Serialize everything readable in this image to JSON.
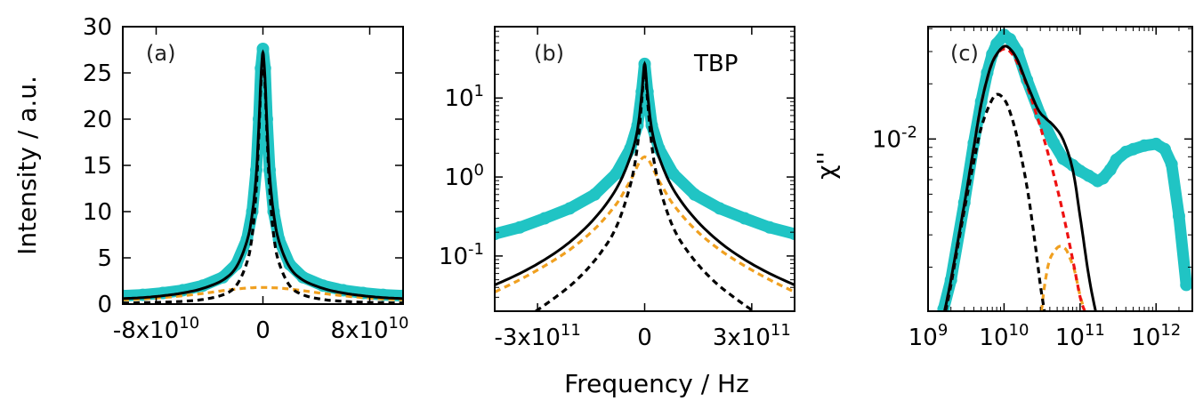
{
  "chart_data": [
    {
      "panel": "(a)",
      "type": "line",
      "xscale": "linear",
      "yscale": "linear",
      "xlim": [
        -105000000000,
        105000000000
      ],
      "ylim": [
        0,
        30
      ],
      "ylabel": "Intensity / a.u.",
      "xticks": [
        {
          "value": -80000000000,
          "mantissa": "-8x10",
          "exp": "10"
        },
        {
          "value": 0,
          "mantissa": "0",
          "exp": ""
        },
        {
          "value": 80000000000,
          "mantissa": "8x10",
          "exp": "10"
        }
      ],
      "yticks": [
        {
          "value": 0,
          "label": "0"
        },
        {
          "value": 5,
          "label": "5"
        },
        {
          "value": 10,
          "label": "10"
        },
        {
          "value": 15,
          "label": "15"
        },
        {
          "value": 20,
          "label": "20"
        },
        {
          "value": 25,
          "label": "25"
        },
        {
          "value": 30,
          "label": "30"
        }
      ],
      "series": [
        {
          "role": "data",
          "color": "#20c4c4",
          "style": "markers",
          "x": [
            -105000000000,
            -90000000000,
            -75000000000,
            -60000000000,
            -45000000000,
            -30000000000,
            -20000000000,
            -12000000000,
            -8000000000,
            -5000000000,
            -3000000000,
            -1500000000,
            0,
            1500000000,
            3000000000,
            5000000000,
            8000000000,
            12000000000,
            20000000000,
            30000000000,
            45000000000,
            60000000000,
            75000000000,
            90000000000,
            105000000000
          ],
          "y": [
            0.9,
            1.0,
            1.2,
            1.5,
            2.0,
            2.9,
            4.3,
            7.0,
            10.0,
            14.5,
            20.0,
            25.5,
            27.6,
            25.5,
            20.0,
            14.5,
            10.0,
            7.0,
            4.3,
            2.9,
            2.0,
            1.5,
            1.2,
            1.0,
            0.9
          ]
        },
        {
          "role": "fit-total",
          "color": "#000000",
          "style": "solid",
          "x": [
            -105000000000,
            -90000000000,
            -75000000000,
            -60000000000,
            -45000000000,
            -30000000000,
            -20000000000,
            -12000000000,
            -8000000000,
            -5000000000,
            -3000000000,
            -1500000000,
            0,
            1500000000,
            3000000000,
            5000000000,
            8000000000,
            12000000000,
            20000000000,
            30000000000,
            45000000000,
            60000000000,
            75000000000,
            90000000000,
            105000000000
          ],
          "y": [
            0.6,
            0.7,
            0.9,
            1.2,
            1.7,
            2.6,
            4.0,
            6.8,
            9.8,
            14.0,
            19.5,
            24.5,
            27.2,
            24.5,
            19.5,
            14.0,
            9.8,
            6.8,
            4.0,
            2.6,
            1.7,
            1.2,
            0.9,
            0.7,
            0.6
          ]
        },
        {
          "role": "component-1",
          "color": "#000000",
          "style": "dashed",
          "x": [
            -105000000000,
            -90000000000,
            -75000000000,
            -60000000000,
            -45000000000,
            -30000000000,
            -20000000000,
            -12000000000,
            -8000000000,
            -5000000000,
            -3000000000,
            -1500000000,
            0,
            1500000000,
            3000000000,
            5000000000,
            8000000000,
            12000000000,
            20000000000,
            30000000000,
            45000000000,
            60000000000,
            75000000000,
            90000000000,
            105000000000
          ],
          "y": [
            0.1,
            0.15,
            0.2,
            0.3,
            0.5,
            1.0,
            2.0,
            4.5,
            7.5,
            12.5,
            18.5,
            23.8,
            25.5,
            23.8,
            18.5,
            12.5,
            7.5,
            4.5,
            2.0,
            1.0,
            0.5,
            0.3,
            0.2,
            0.15,
            0.1
          ]
        },
        {
          "role": "component-2",
          "color": "#f0a020",
          "style": "dashed",
          "x": [
            -105000000000,
            -90000000000,
            -75000000000,
            -60000000000,
            -45000000000,
            -30000000000,
            -15000000000,
            0,
            15000000000,
            30000000000,
            45000000000,
            60000000000,
            75000000000,
            90000000000,
            105000000000
          ],
          "y": [
            0.45,
            0.55,
            0.7,
            0.9,
            1.15,
            1.45,
            1.7,
            1.8,
            1.7,
            1.45,
            1.15,
            0.9,
            0.7,
            0.55,
            0.45
          ]
        }
      ]
    },
    {
      "panel": "(b)",
      "type": "line",
      "annotation": "TBP",
      "xscale": "linear",
      "yscale": "log",
      "xlim": [
        -420000000000,
        420000000000
      ],
      "ylim": [
        0.02,
        80
      ],
      "xlabel": "Frequency / Hz",
      "xticks": [
        {
          "value": -300000000000,
          "mantissa": "-3x10",
          "exp": "11"
        },
        {
          "value": 0,
          "mantissa": "0",
          "exp": ""
        },
        {
          "value": 300000000000,
          "mantissa": "3x10",
          "exp": "11"
        }
      ],
      "yticks": [
        {
          "value": 0.1,
          "mantissa": "10",
          "exp": "-1"
        },
        {
          "value": 1,
          "mantissa": "10",
          "exp": "0"
        },
        {
          "value": 10,
          "mantissa": "10",
          "exp": "1"
        }
      ],
      "series": [
        {
          "role": "data",
          "color": "#20c4c4",
          "style": "markers",
          "x": [
            -420000000000,
            -350000000000,
            -280000000000,
            -210000000000,
            -140000000000,
            -80000000000,
            -40000000000,
            -20000000000,
            -8000000000,
            0,
            8000000000,
            20000000000,
            40000000000,
            80000000000,
            140000000000,
            210000000000,
            280000000000,
            350000000000,
            420000000000
          ],
          "y": [
            0.19,
            0.23,
            0.3,
            0.4,
            0.6,
            1.1,
            2.3,
            4.5,
            12,
            27,
            12,
            4.5,
            2.3,
            1.1,
            0.6,
            0.4,
            0.3,
            0.23,
            0.19
          ]
        },
        {
          "role": "fit-total",
          "color": "#000000",
          "style": "solid",
          "x": [
            -420000000000,
            -350000000000,
            -280000000000,
            -210000000000,
            -140000000000,
            -80000000000,
            -40000000000,
            -20000000000,
            -8000000000,
            0,
            8000000000,
            20000000000,
            40000000000,
            80000000000,
            140000000000,
            210000000000,
            280000000000,
            350000000000,
            420000000000
          ],
          "y": [
            0.043,
            0.06,
            0.09,
            0.15,
            0.3,
            0.7,
            1.8,
            4.0,
            11.5,
            27,
            11.5,
            4.0,
            1.8,
            0.7,
            0.3,
            0.15,
            0.09,
            0.06,
            0.043
          ]
        },
        {
          "role": "component-1",
          "color": "#000000",
          "style": "dashed",
          "x": [
            -305000000000,
            -250000000000,
            -190000000000,
            -130000000000,
            -80000000000,
            -40000000000,
            -20000000000,
            -8000000000,
            0,
            8000000000,
            20000000000,
            40000000000,
            80000000000,
            130000000000,
            190000000000,
            250000000000,
            305000000000
          ],
          "y": [
            0.02,
            0.03,
            0.05,
            0.1,
            0.23,
            0.8,
            2.5,
            9.5,
            25,
            9.5,
            2.5,
            0.8,
            0.23,
            0.1,
            0.05,
            0.03,
            0.02
          ]
        },
        {
          "role": "component-2",
          "color": "#f0a020",
          "style": "dashed",
          "x": [
            -420000000000,
            -350000000000,
            -280000000000,
            -210000000000,
            -140000000000,
            -80000000000,
            -40000000000,
            0,
            40000000000,
            80000000000,
            140000000000,
            210000000000,
            280000000000,
            350000000000,
            420000000000
          ],
          "y": [
            0.035,
            0.05,
            0.075,
            0.12,
            0.22,
            0.45,
            0.9,
            1.8,
            0.9,
            0.45,
            0.22,
            0.12,
            0.075,
            0.05,
            0.035
          ]
        }
      ]
    },
    {
      "panel": "(c)",
      "type": "line",
      "xscale": "log",
      "yscale": "log",
      "xlim": [
        1000000000,
        3000000000000
      ],
      "ylim": [
        0.00115,
        0.041
      ],
      "ylabel": "χ''",
      "xticks": [
        {
          "value": 1000000000,
          "mantissa": "10",
          "exp": "9"
        },
        {
          "value": 10000000000,
          "mantissa": "10",
          "exp": "10"
        },
        {
          "value": 100000000000,
          "mantissa": "10",
          "exp": "11"
        },
        {
          "value": 1000000000000,
          "mantissa": "10",
          "exp": "12"
        }
      ],
      "yticks": [
        {
          "value": 0.01,
          "mantissa": "10",
          "exp": "-2"
        }
      ],
      "series": [
        {
          "role": "data",
          "color": "#20c4c4",
          "style": "markers",
          "x": [
            1600000000,
            2000000000,
            3000000000,
            4000000000,
            5000000000,
            6000000000,
            7000000000,
            8000000000,
            10000000000,
            12000000000,
            15000000000,
            20000000000,
            30000000000,
            45000000000,
            60000000000,
            80000000000,
            100000000000,
            130000000000,
            170000000000,
            200000000000,
            250000000000,
            300000000000,
            400000000000,
            500000000000,
            700000000000,
            1000000000000,
            1300000000000,
            1600000000000,
            2000000000000,
            2500000000000
          ],
          "y": [
            0.00118,
            0.0017,
            0.0045,
            0.0095,
            0.016,
            0.023,
            0.029,
            0.033,
            0.037,
            0.035,
            0.03,
            0.021,
            0.0135,
            0.0095,
            0.0078,
            0.0072,
            0.0067,
            0.0063,
            0.0059,
            0.0061,
            0.0068,
            0.0077,
            0.0085,
            0.0088,
            0.0092,
            0.0094,
            0.0088,
            0.0073,
            0.0038,
            0.0016
          ]
        },
        {
          "role": "fit-total",
          "color": "#000000",
          "style": "solid",
          "x": [
            1650000000,
            2000000000,
            3000000000,
            4000000000,
            5000000000,
            6500000000,
            8000000000,
            10000000000,
            12000000000,
            15000000000,
            20000000000,
            28000000000,
            35000000000,
            45000000000,
            60000000000,
            80000000000,
            100000000000,
            130000000000,
            160000000000
          ],
          "y": [
            0.00115,
            0.0017,
            0.0044,
            0.009,
            0.0155,
            0.024,
            0.029,
            0.032,
            0.031,
            0.027,
            0.02,
            0.0145,
            0.013,
            0.0118,
            0.0099,
            0.0068,
            0.0038,
            0.0018,
            0.00115
          ]
        },
        {
          "role": "component-red",
          "color": "#ee1111",
          "style": "dashed",
          "x": [
            1650000000,
            2000000000,
            3000000000,
            4000000000,
            5000000000,
            6500000000,
            8000000000,
            10000000000,
            12000000000,
            15000000000,
            20000000000,
            28000000000,
            35000000000,
            45000000000,
            60000000000,
            80000000000,
            100000000000,
            115000000000
          ],
          "y": [
            0.00115,
            0.0017,
            0.0044,
            0.009,
            0.0155,
            0.024,
            0.029,
            0.031,
            0.03,
            0.026,
            0.0195,
            0.0128,
            0.0094,
            0.0064,
            0.0039,
            0.0022,
            0.00138,
            0.00115
          ]
        },
        {
          "role": "component-1",
          "color": "#000000",
          "style": "dashed",
          "x": [
            1700000000,
            2000000000,
            3000000000,
            4000000000,
            5000000000,
            6500000000,
            8000000000,
            10000000000,
            12000000000,
            15000000000,
            20000000000,
            25000000000,
            30000000000,
            34000000000
          ],
          "y": [
            0.00115,
            0.0016,
            0.0041,
            0.0075,
            0.0115,
            0.0155,
            0.0175,
            0.0165,
            0.014,
            0.01,
            0.0055,
            0.0029,
            0.0016,
            0.00115
          ]
        },
        {
          "role": "component-2",
          "color": "#f0a020",
          "style": "dashed",
          "x": [
            31000000000,
            35000000000,
            40000000000,
            48000000000,
            55000000000,
            65000000000,
            75000000000,
            85000000000,
            100000000000,
            115000000000
          ],
          "y": [
            0.00115,
            0.0017,
            0.0022,
            0.0025,
            0.0026,
            0.0025,
            0.0022,
            0.0019,
            0.0014,
            0.00115
          ]
        }
      ]
    }
  ]
}
